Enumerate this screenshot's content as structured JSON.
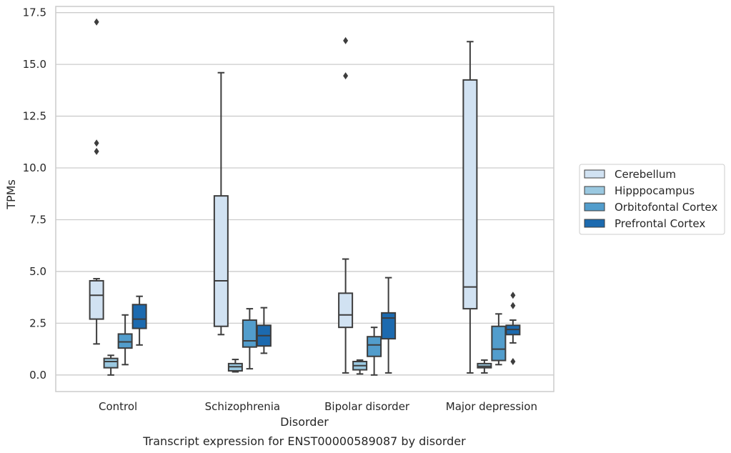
{
  "chart_data": {
    "type": "box",
    "xlabel": "Disorder",
    "ylabel": "TPMs",
    "caption": "Transcript expression for ENST00000589087 by disorder",
    "ylim": [
      -0.8,
      17.8
    ],
    "yticks": [
      0.0,
      2.5,
      5.0,
      7.5,
      10.0,
      12.5,
      15.0,
      17.5
    ],
    "ytick_labels": [
      "0.0",
      "2.5",
      "5.0",
      "7.5",
      "10.0",
      "12.5",
      "15.0",
      "17.5"
    ],
    "grid": "horizontal",
    "legend_position": "right",
    "categories": [
      "Control",
      "Schizophrenia",
      "Bipolar disorder",
      "Major depression"
    ],
    "series": [
      {
        "name": "Cerebellum",
        "color": "#d1e2f2",
        "boxes": [
          {
            "whislo": 1.5,
            "q1": 2.7,
            "med": 3.85,
            "q3": 4.55,
            "whishi": 4.65,
            "fliers": [
              17.05,
              11.2,
              10.8
            ]
          },
          {
            "whislo": 1.95,
            "q1": 2.35,
            "med": 4.55,
            "q3": 8.65,
            "whishi": 14.6,
            "fliers": []
          },
          {
            "whislo": 0.1,
            "q1": 2.3,
            "med": 2.9,
            "q3": 3.95,
            "whishi": 5.6,
            "fliers": [
              16.15,
              14.45
            ]
          },
          {
            "whislo": 0.1,
            "q1": 3.2,
            "med": 4.25,
            "q3": 14.25,
            "whishi": 16.1,
            "fliers": []
          }
        ]
      },
      {
        "name": "Hipppocampus",
        "color": "#9ac8e0",
        "boxes": [
          {
            "whislo": 0.0,
            "q1": 0.35,
            "med": 0.65,
            "q3": 0.8,
            "whishi": 0.95,
            "fliers": []
          },
          {
            "whislo": 0.15,
            "q1": 0.2,
            "med": 0.4,
            "q3": 0.55,
            "whishi": 0.75,
            "fliers": []
          },
          {
            "whislo": 0.05,
            "q1": 0.25,
            "med": 0.45,
            "q3": 0.65,
            "whishi": 0.72,
            "fliers": []
          },
          {
            "whislo": 0.1,
            "q1": 0.35,
            "med": 0.42,
            "q3": 0.55,
            "whishi": 0.72,
            "fliers": []
          }
        ]
      },
      {
        "name": "Orbitofontal Cortex",
        "color": "#529dcc",
        "boxes": [
          {
            "whislo": 0.5,
            "q1": 1.3,
            "med": 1.6,
            "q3": 1.98,
            "whishi": 2.9,
            "fliers": []
          },
          {
            "whislo": 0.3,
            "q1": 1.35,
            "med": 1.65,
            "q3": 2.65,
            "whishi": 3.2,
            "fliers": []
          },
          {
            "whislo": 0.0,
            "q1": 0.9,
            "med": 1.45,
            "q3": 1.85,
            "whishi": 2.3,
            "fliers": []
          },
          {
            "whislo": 0.5,
            "q1": 0.7,
            "med": 1.25,
            "q3": 2.35,
            "whishi": 2.95,
            "fliers": []
          }
        ]
      },
      {
        "name": "Prefrontal Cortex",
        "color": "#1c6aaf",
        "boxes": [
          {
            "whislo": 1.45,
            "q1": 2.25,
            "med": 2.7,
            "q3": 3.4,
            "whishi": 3.8,
            "fliers": []
          },
          {
            "whislo": 1.05,
            "q1": 1.4,
            "med": 1.9,
            "q3": 2.4,
            "whishi": 3.25,
            "fliers": []
          },
          {
            "whislo": 0.1,
            "q1": 1.75,
            "med": 2.75,
            "q3": 3.0,
            "whishi": 4.7,
            "fliers": []
          },
          {
            "whislo": 1.55,
            "q1": 1.95,
            "med": 2.2,
            "q3": 2.4,
            "whishi": 2.65,
            "fliers": [
              3.85,
              3.35,
              0.65
            ]
          }
        ]
      }
    ]
  }
}
